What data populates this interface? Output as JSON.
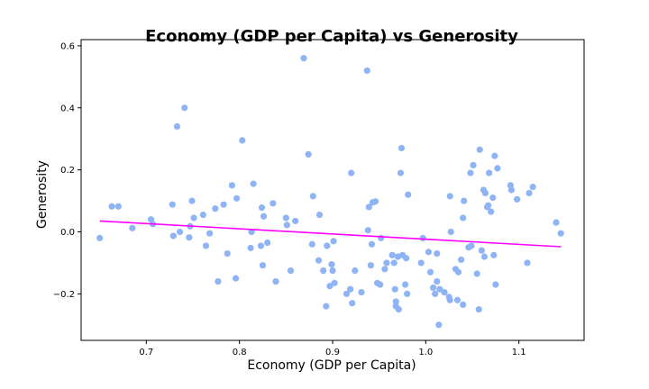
{
  "chart_data": {
    "type": "scatter",
    "title": "Economy (GDP per Capita) vs Generosity",
    "xlabel": "Economy (GDP per Capita)",
    "ylabel": "Generosity",
    "xlim": [
      0.63,
      1.17
    ],
    "ylim": [
      -0.35,
      0.62
    ],
    "xticks": [
      0.7,
      0.8,
      0.9,
      1.0,
      1.1
    ],
    "xtick_labels": [
      "0.7",
      "0.8",
      "0.9",
      "1.0",
      "1.1"
    ],
    "yticks": [
      -0.2,
      0.0,
      0.2,
      0.4,
      0.6
    ],
    "ytick_labels": [
      "−0.2",
      "0.0",
      "0.2",
      "0.4",
      "0.6"
    ],
    "grid": false,
    "point_color": "#8fb4f5",
    "trend_color": "#ff00ff",
    "trendline": {
      "x": [
        0.65,
        1.145
      ],
      "y": [
        0.035,
        -0.048
      ]
    },
    "points": [
      [
        0.65,
        -0.02
      ],
      [
        0.663,
        0.082
      ],
      [
        0.67,
        0.082
      ],
      [
        0.685,
        0.012
      ],
      [
        0.705,
        0.04
      ],
      [
        0.707,
        0.025
      ],
      [
        0.728,
        0.088
      ],
      [
        0.729,
        -0.013
      ],
      [
        0.733,
        0.34
      ],
      [
        0.736,
        0.0
      ],
      [
        0.741,
        0.4
      ],
      [
        0.746,
        -0.018
      ],
      [
        0.747,
        0.018
      ],
      [
        0.749,
        0.1
      ],
      [
        0.751,
        0.045
      ],
      [
        0.761,
        0.055
      ],
      [
        0.764,
        -0.045
      ],
      [
        0.768,
        -0.005
      ],
      [
        0.774,
        0.075
      ],
      [
        0.777,
        -0.16
      ],
      [
        0.783,
        0.088
      ],
      [
        0.787,
        -0.07
      ],
      [
        0.792,
        0.15
      ],
      [
        0.796,
        -0.15
      ],
      [
        0.797,
        0.108
      ],
      [
        0.803,
        0.295
      ],
      [
        0.812,
        -0.052
      ],
      [
        0.813,
        0.0
      ],
      [
        0.815,
        0.155
      ],
      [
        0.823,
        -0.045
      ],
      [
        0.824,
        0.078
      ],
      [
        0.825,
        -0.108
      ],
      [
        0.826,
        0.05
      ],
      [
        0.83,
        -0.035
      ],
      [
        0.836,
        0.092
      ],
      [
        0.839,
        -0.16
      ],
      [
        0.85,
        0.045
      ],
      [
        0.851,
        0.022
      ],
      [
        0.855,
        -0.125
      ],
      [
        0.86,
        0.035
      ],
      [
        0.869,
        0.56
      ],
      [
        0.874,
        0.25
      ],
      [
        0.878,
        -0.04
      ],
      [
        0.879,
        0.115
      ],
      [
        0.885,
        -0.092
      ],
      [
        0.886,
        0.055
      ],
      [
        0.89,
        -0.125
      ],
      [
        0.893,
        -0.24
      ],
      [
        0.894,
        -0.045
      ],
      [
        0.897,
        -0.175
      ],
      [
        0.899,
        -0.105
      ],
      [
        0.9,
        -0.125
      ],
      [
        0.901,
        -0.03
      ],
      [
        0.902,
        -0.165
      ],
      [
        0.915,
        -0.2
      ],
      [
        0.919,
        -0.185
      ],
      [
        0.92,
        0.19
      ],
      [
        0.921,
        -0.23
      ],
      [
        0.924,
        -0.125
      ],
      [
        0.931,
        -0.195
      ],
      [
        0.937,
        0.52
      ],
      [
        0.938,
        0.005
      ],
      [
        0.939,
        0.08
      ],
      [
        0.941,
        -0.108
      ],
      [
        0.943,
        0.095
      ],
      [
        0.942,
        -0.04
      ],
      [
        0.946,
        0.098
      ],
      [
        0.948,
        -0.165
      ],
      [
        0.951,
        -0.17
      ],
      [
        0.952,
        -0.02
      ],
      [
        0.956,
        -0.12
      ],
      [
        0.958,
        -0.1
      ],
      [
        0.964,
        -0.075
      ],
      [
        0.966,
        -0.1
      ],
      [
        0.967,
        -0.185
      ],
      [
        0.968,
        -0.225
      ],
      [
        0.968,
        -0.24
      ],
      [
        0.97,
        -0.08
      ],
      [
        0.971,
        -0.25
      ],
      [
        0.973,
        0.19
      ],
      [
        0.974,
        0.27
      ],
      [
        0.975,
        -0.075
      ],
      [
        0.978,
        -0.17
      ],
      [
        0.979,
        -0.085
      ],
      [
        0.98,
        -0.2
      ],
      [
        0.981,
        0.12
      ],
      [
        0.995,
        -0.1
      ],
      [
        0.997,
        -0.02
      ],
      [
        1.003,
        -0.065
      ],
      [
        1.005,
        -0.13
      ],
      [
        1.008,
        -0.18
      ],
      [
        1.01,
        -0.2
      ],
      [
        1.012,
        -0.16
      ],
      [
        1.012,
        -0.07
      ],
      [
        1.014,
        -0.3
      ],
      [
        1.015,
        -0.185
      ],
      [
        1.02,
        -0.195
      ],
      [
        1.025,
        -0.21
      ],
      [
        1.026,
        -0.22
      ],
      [
        1.026,
        0.115
      ],
      [
        1.027,
        0.0
      ],
      [
        1.032,
        -0.12
      ],
      [
        1.034,
        -0.22
      ],
      [
        1.035,
        -0.13
      ],
      [
        1.038,
        -0.09
      ],
      [
        1.04,
        -0.235
      ],
      [
        1.04,
        0.045
      ],
      [
        1.041,
        0.1
      ],
      [
        1.046,
        -0.05
      ],
      [
        1.048,
        0.19
      ],
      [
        1.049,
        -0.045
      ],
      [
        1.051,
        0.215
      ],
      [
        1.055,
        -0.135
      ],
      [
        1.057,
        -0.25
      ],
      [
        1.058,
        0.265
      ],
      [
        1.06,
        -0.06
      ],
      [
        1.062,
        0.135
      ],
      [
        1.063,
        -0.08
      ],
      [
        1.064,
        0.125
      ],
      [
        1.066,
        0.08
      ],
      [
        1.067,
        0.085
      ],
      [
        1.068,
        0.19
      ],
      [
        1.07,
        0.065
      ],
      [
        1.072,
        0.11
      ],
      [
        1.073,
        -0.075
      ],
      [
        1.074,
        0.245
      ],
      [
        1.075,
        -0.17
      ],
      [
        1.077,
        0.205
      ],
      [
        1.091,
        0.15
      ],
      [
        1.092,
        0.135
      ],
      [
        1.098,
        0.105
      ],
      [
        1.109,
        -0.1
      ],
      [
        1.111,
        0.125
      ],
      [
        1.115,
        0.145
      ],
      [
        1.14,
        0.03
      ],
      [
        1.145,
        -0.005
      ]
    ]
  }
}
